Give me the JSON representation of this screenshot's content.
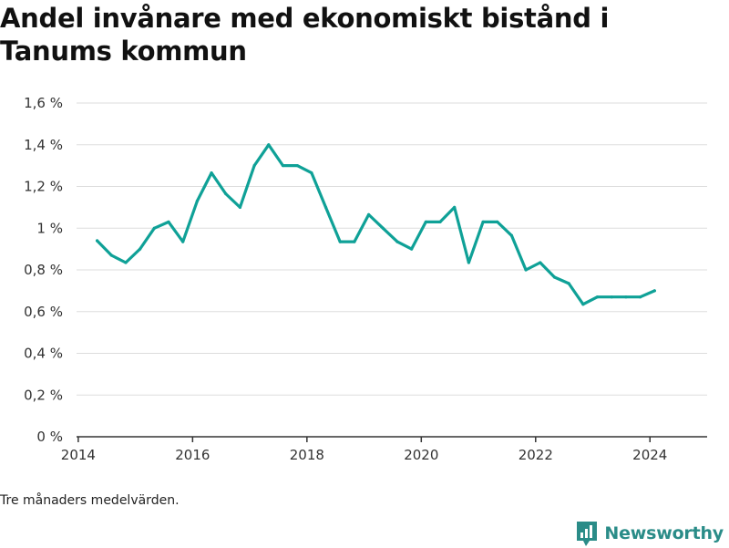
{
  "title": "Andel invånare med ekonomiskt bistånd i Tanums kommun",
  "note": "Tre månaders medelvärden.",
  "brand": {
    "name": "Newsworthy",
    "icon": "newsworthy-logo-icon",
    "color": "#2a8c88"
  },
  "colors": {
    "line": "#0fa197",
    "grid": "#dddddd",
    "axis": "#333333"
  },
  "chart_data": {
    "type": "line",
    "title": "Andel invånare med ekonomiskt bistånd i Tanums kommun",
    "xlabel": "",
    "ylabel": "",
    "xlim": [
      2013.97,
      2025.0
    ],
    "ylim": [
      0,
      1.6
    ],
    "x_ticks": [
      2014,
      2016,
      2018,
      2020,
      2022,
      2024
    ],
    "x_tick_labels": [
      "2014",
      "2016",
      "2018",
      "2020",
      "2022",
      "2024"
    ],
    "y_ticks": [
      0,
      0.2,
      0.4,
      0.6,
      0.8,
      1.0,
      1.2,
      1.4,
      1.6
    ],
    "y_tick_labels": [
      "0 %",
      "0,2 %",
      "0,4 %",
      "0,6 %",
      "0,8 %",
      "1 %",
      "1,2 %",
      "1,4 %",
      "1,6 %"
    ],
    "grid": true,
    "legend": "none",
    "series": [
      {
        "x": [
          2014.33,
          2014.58,
          2014.83,
          2015.08,
          2015.33,
          2015.58,
          2015.83,
          2016.08,
          2016.33,
          2016.58,
          2016.83,
          2017.08,
          2017.33,
          2017.58,
          2017.83,
          2018.08,
          2018.33,
          2018.58,
          2018.83,
          2019.08,
          2019.33,
          2019.58,
          2019.83,
          2020.08,
          2020.33,
          2020.58,
          2020.83,
          2021.08,
          2021.33,
          2021.58,
          2021.83,
          2022.08,
          2022.33,
          2022.58,
          2022.83,
          2023.08,
          2023.33,
          2023.58,
          2023.83,
          2024.08
        ],
        "y": [
          0.94,
          0.87,
          0.835,
          0.9,
          1.0,
          1.03,
          0.935,
          1.13,
          1.265,
          1.165,
          1.1,
          1.3,
          1.4,
          1.3,
          1.3,
          1.265,
          1.1,
          0.935,
          0.935,
          1.065,
          1.0,
          0.935,
          0.9,
          1.03,
          1.03,
          1.1,
          0.835,
          1.03,
          1.03,
          0.965,
          0.8,
          0.835,
          0.765,
          0.735,
          0.635,
          0.67,
          0.67,
          0.67,
          0.67,
          0.7
        ]
      }
    ]
  }
}
